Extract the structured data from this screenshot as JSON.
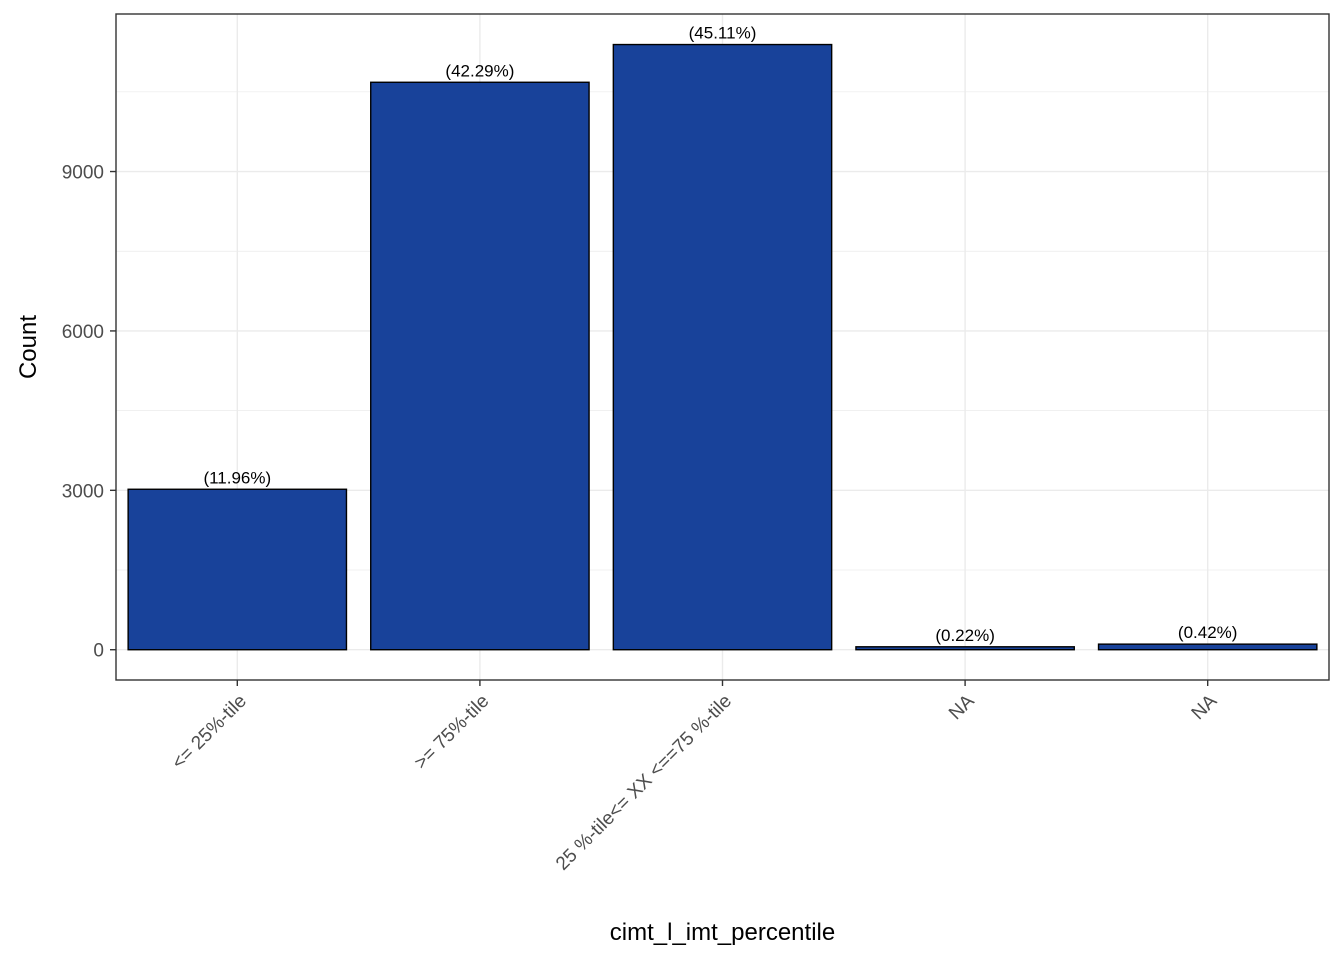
{
  "chart_data": {
    "type": "bar",
    "title": "",
    "xlabel": "cimt_l_imt_percentile",
    "ylabel": "Count",
    "categories": [
      "<= 25%-tile",
      ">= 75%-tile",
      "25 %-tile<= XX <==75 %-tile",
      "NA",
      "NA"
    ],
    "values": [
      3020,
      10680,
      11390,
      55,
      105
    ],
    "data_labels": [
      "(11.96%)",
      "(42.29%)",
      "(45.11%)",
      "(0.22%)",
      "(0.42%)"
    ],
    "y_ticks": [
      0,
      3000,
      6000,
      9000
    ],
    "y_tick_labels": [
      "0",
      "3000",
      "6000",
      "9000"
    ],
    "ylim": [
      -570,
      11965
    ],
    "grid": true,
    "legend": "none",
    "colors": {
      "bar_fill": "#18429A",
      "bar_stroke": "#000000",
      "grid": "#EBEBEB",
      "panel_border": "#333333"
    }
  }
}
